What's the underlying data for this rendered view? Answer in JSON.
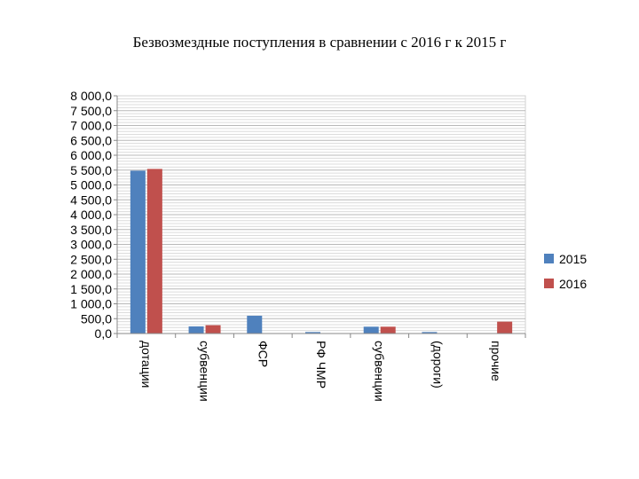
{
  "page": {
    "title": "Безвозмездные поступления в сравнении с 2016 г к  2015 г"
  },
  "chart_data": {
    "type": "bar",
    "categories": [
      "дотации",
      "субвенции",
      "ФСР",
      "РФ ЧМР",
      "субвенции",
      "(дороги)",
      "прочие"
    ],
    "series": [
      {
        "name": "2015",
        "color": "#4F81BD",
        "values": [
          5480,
          240,
          600,
          50,
          230,
          50,
          0
        ]
      },
      {
        "name": "2016",
        "color": "#C0504D",
        "values": [
          5540,
          280,
          0,
          0,
          230,
          0,
          400
        ]
      }
    ],
    "ylim": [
      0,
      8000
    ],
    "y_major_step": 500,
    "y_minor_step": 100,
    "y_tick_labels": [
      "0,0",
      "500,0",
      "1 000,0",
      "1 500,0",
      "2 000,0",
      "2 500,0",
      "3 000,0",
      "3 500,0",
      "4 000,0",
      "4 500,0",
      "5 000,0",
      "5 500,0",
      "6 000,0",
      "6 500,0",
      "7 000,0",
      "7 500,0",
      "8 000,0"
    ],
    "grid": true,
    "legend_position": "right",
    "category_label_rotation": "vertical"
  }
}
